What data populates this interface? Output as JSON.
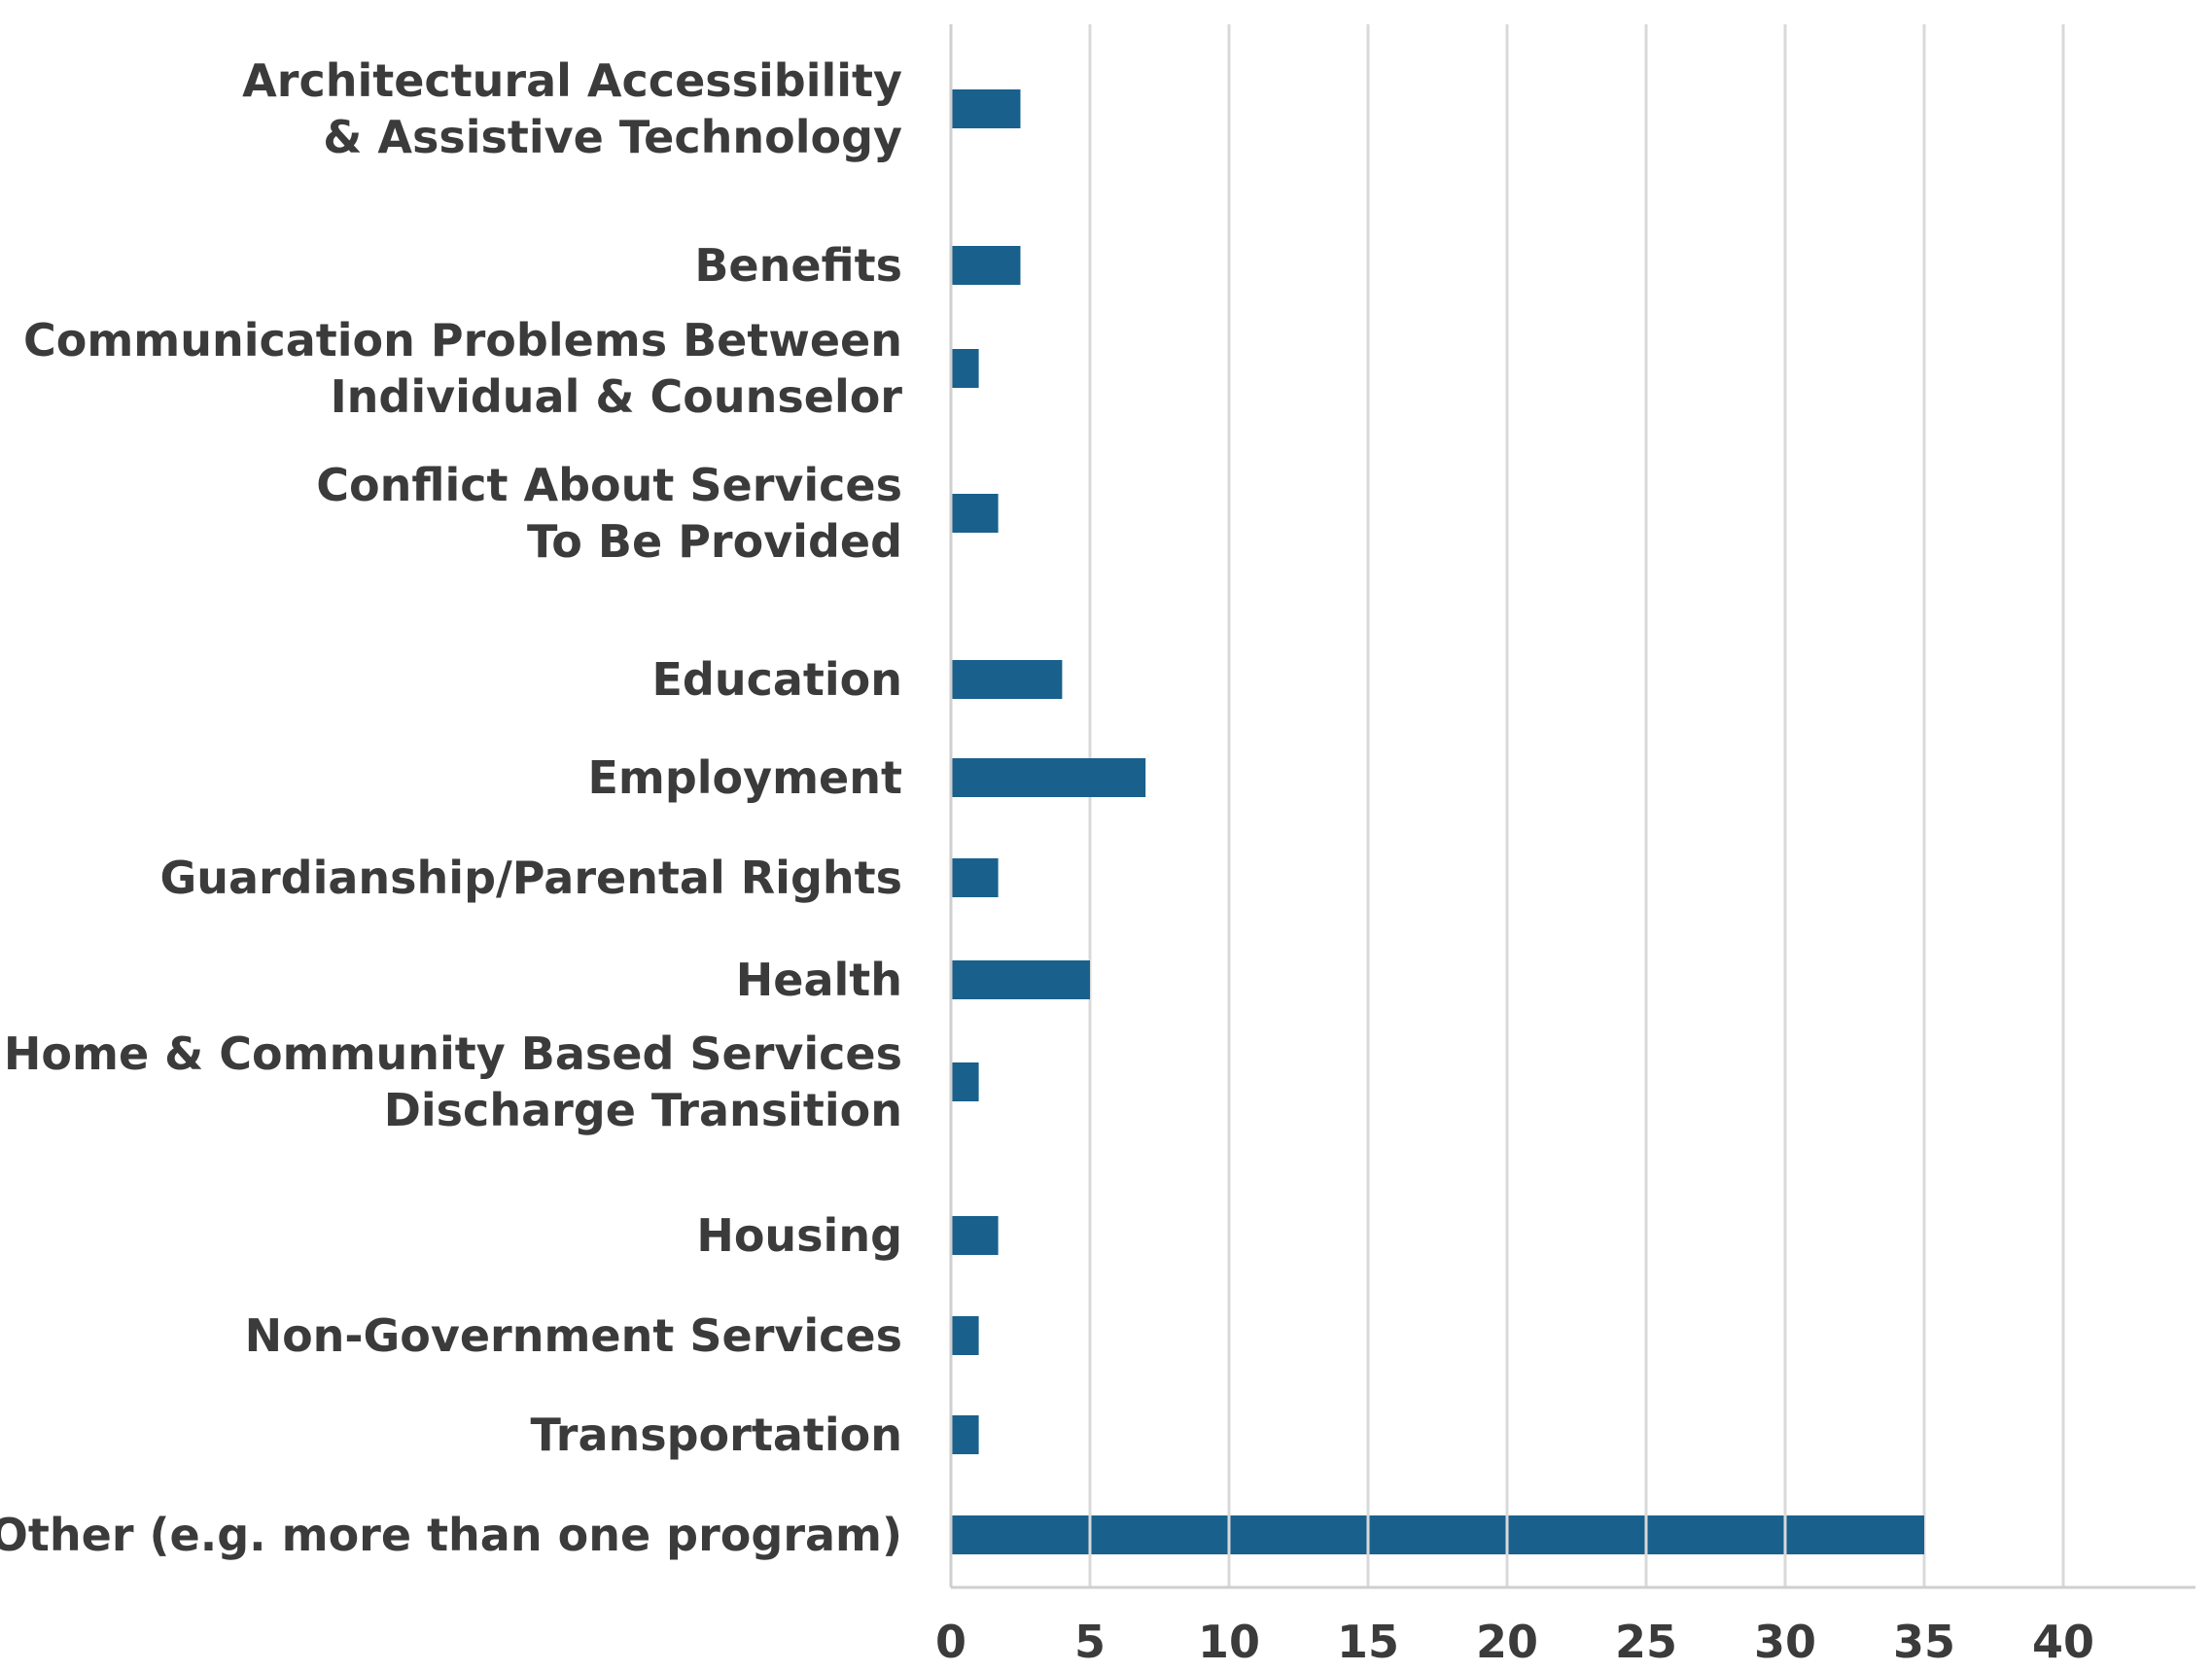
{
  "colors": {
    "bar": "#19608C",
    "grid": "#d9d9d9",
    "text": "#3b3b3b",
    "background": "#ffffff"
  },
  "chart_data": {
    "type": "bar",
    "orientation": "horizontal",
    "title": "",
    "xlabel": "",
    "ylabel": "",
    "xlim": [
      0,
      45
    ],
    "xticks": [
      0,
      5,
      10,
      15,
      20,
      25,
      30,
      35,
      40
    ],
    "grid": "vertical",
    "legend": "none",
    "categories": [
      [
        "Architectural Accessibility",
        "& Assistive Technology"
      ],
      [
        "Benefits"
      ],
      [
        "Communication Problems Between",
        "Individual & Counselor"
      ],
      [
        "Conflict About Services",
        "To Be Provided"
      ],
      [
        "Education"
      ],
      [
        "Employment"
      ],
      [
        "Guardianship/Parental Rights"
      ],
      [
        "Health"
      ],
      [
        "Home & Community Based Services",
        "Discharge Transition"
      ],
      [
        "Housing"
      ],
      [
        "Non-Government Services"
      ],
      [
        "Transportation"
      ],
      [
        "Other (e.g. more than one program)"
      ]
    ],
    "values": [
      2.5,
      2.5,
      1,
      1.7,
      4,
      7,
      1.7,
      5,
      1,
      1.7,
      1,
      1,
      35
    ]
  }
}
